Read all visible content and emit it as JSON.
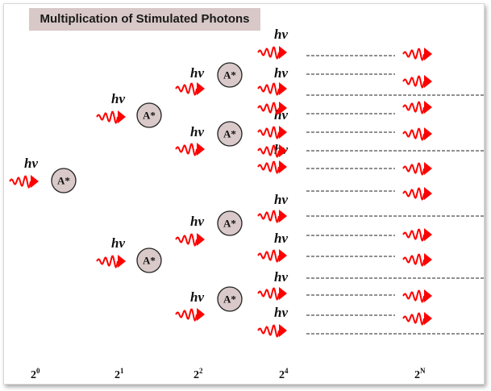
{
  "title": "Multiplication of Stimulated Photons",
  "photon_label": "hv",
  "atom_label": "A*",
  "generations": [
    {
      "base": "2",
      "exp": "0"
    },
    {
      "base": "2",
      "exp": "1"
    },
    {
      "base": "2",
      "exp": "2"
    },
    {
      "base": "2",
      "exp": "4"
    },
    {
      "base": "2",
      "exp": "N"
    }
  ],
  "colors": {
    "photon": "#ff0000",
    "atom_fill": "#d9c9c9",
    "title_bg": "#d8c8c8"
  }
}
